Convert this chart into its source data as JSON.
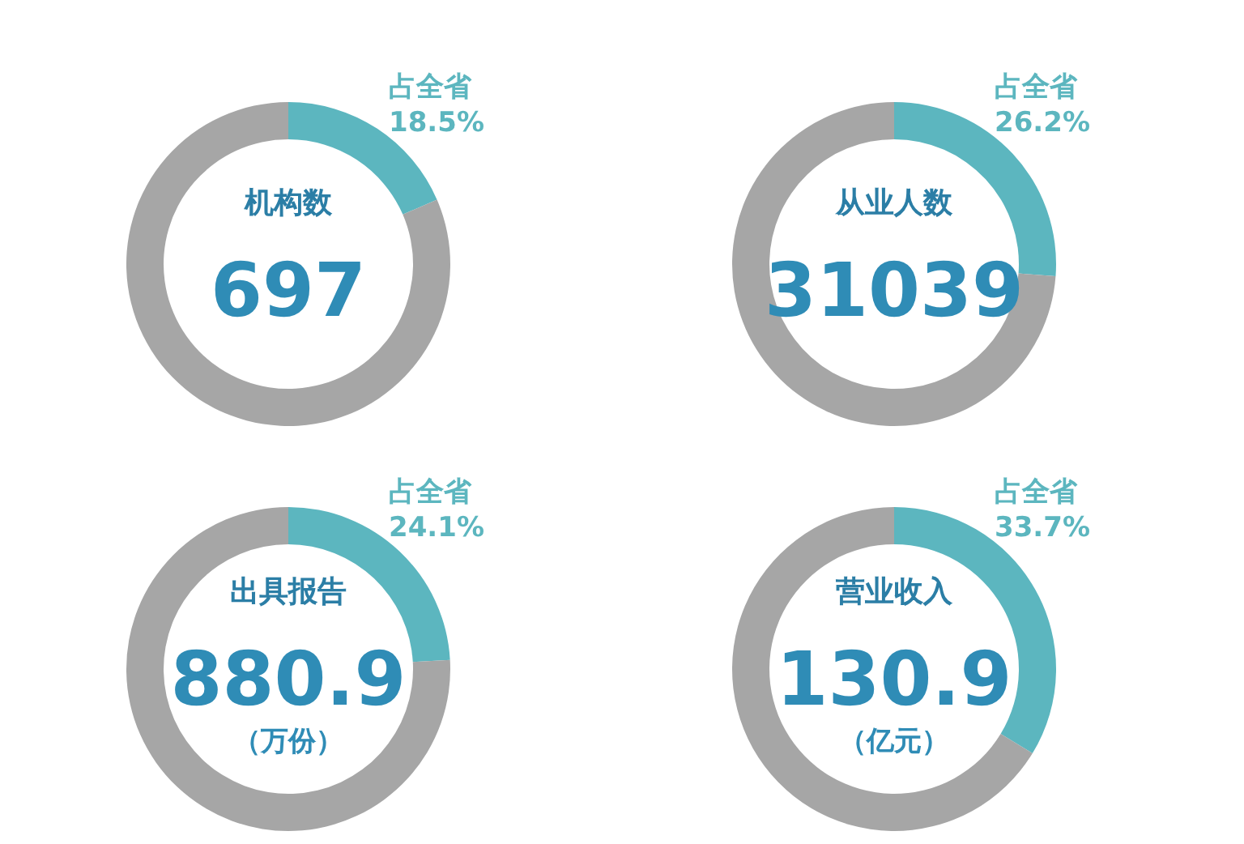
{
  "chart_data": [
    {
      "type": "donut",
      "title": "机构数",
      "categories": [
        "占全省",
        null
      ],
      "values": [
        18.5,
        81.5
      ],
      "colors": [
        "#5cb6bf",
        "#a6a6a6"
      ],
      "value_labels": [
        "18.5%",
        null
      ],
      "annotations": [
        "697"
      ]
    },
    {
      "type": "donut",
      "title": "从业人数",
      "categories": [
        "占全省",
        null
      ],
      "values": [
        26.2,
        73.8
      ],
      "colors": [
        "#5cb6bf",
        "#a6a6a6"
      ],
      "value_labels": [
        "26.2%",
        null
      ],
      "annotations": [
        "31039"
      ]
    },
    {
      "type": "donut",
      "title": "出具报告",
      "categories": [
        "占全省",
        null
      ],
      "values": [
        24.1,
        75.9
      ],
      "colors": [
        "#5cb6bf",
        "#a6a6a6"
      ],
      "value_labels": [
        "24.1%",
        null
      ],
      "annotations": [
        "880.9",
        "（万份）"
      ]
    },
    {
      "type": "donut",
      "title": "营业收入",
      "categories": [
        "占全省",
        null
      ],
      "values": [
        33.7,
        66.3
      ],
      "colors": [
        "#5cb6bf",
        "#a6a6a6"
      ],
      "value_labels": [
        "33.7%",
        null
      ],
      "annotations": [
        "130.9",
        "（亿元）"
      ]
    }
  ]
}
